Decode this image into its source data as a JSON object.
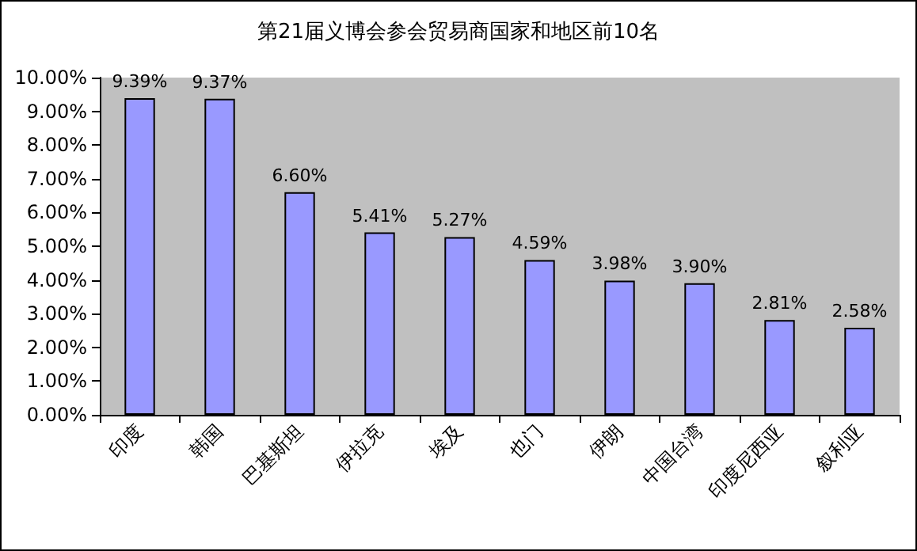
{
  "chart_data": {
    "type": "bar",
    "title": "第21届义博会参会贸易商国家和地区前10名",
    "categories": [
      "印度",
      "韩国",
      "巴基斯坦",
      "伊拉克",
      "埃及",
      "也门",
      "伊朗",
      "中国台湾",
      "印度尼西亚",
      "叙利亚"
    ],
    "values": [
      9.39,
      9.37,
      6.6,
      5.41,
      5.27,
      4.59,
      3.98,
      3.9,
      2.81,
      2.58
    ],
    "value_labels": [
      "9.39%",
      "9.37%",
      "6.60%",
      "5.41%",
      "5.27%",
      "4.59%",
      "3.98%",
      "3.90%",
      "2.81%",
      "2.58%"
    ],
    "color": "#9999ff",
    "ylim": [
      0,
      10
    ],
    "yticks": [
      {
        "value": 0,
        "label": "0.00%"
      },
      {
        "value": 1,
        "label": "1.00%"
      },
      {
        "value": 2,
        "label": "2.00%"
      },
      {
        "value": 3,
        "label": "3.00%"
      },
      {
        "value": 4,
        "label": "4.00%"
      },
      {
        "value": 5,
        "label": "5.00%"
      },
      {
        "value": 6,
        "label": "6.00%"
      },
      {
        "value": 7,
        "label": "7.00%"
      },
      {
        "value": 8,
        "label": "8.00%"
      },
      {
        "value": 9,
        "label": "9.00%"
      },
      {
        "value": 10,
        "label": "10.00%"
      }
    ],
    "grid": false
  }
}
